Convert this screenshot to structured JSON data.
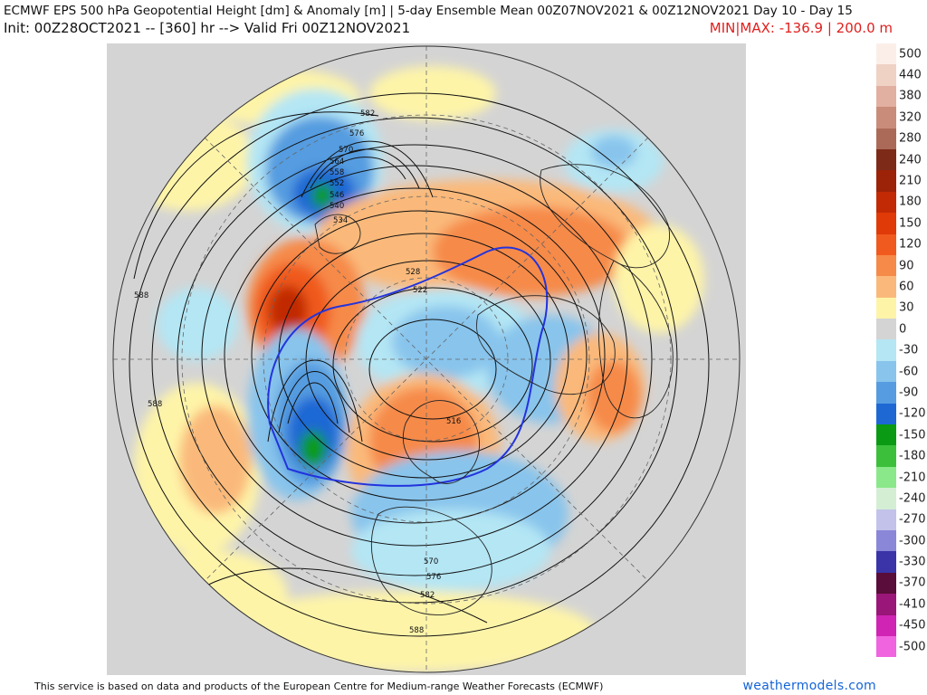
{
  "header": {
    "title": "ECMWF EPS 500 hPa Geopotential Height [dm] & Anomaly [m] | 5-day Ensemble Mean 00Z07NOV2021 & 00Z12NOV2021   Day 10 - Day 15",
    "init": "Init: 00Z28OCT2021 -- [360] hr --> Valid Fri 00Z12NOV2021",
    "minmax": "MIN|MAX: -136.9 | 200.0 m"
  },
  "map": {
    "contour_labels": [
      "582",
      "576",
      "570",
      "564",
      "558",
      "552",
      "546",
      "540",
      "534",
      "528",
      "522",
      "588",
      "588",
      "516",
      "570",
      "576",
      "582",
      "588"
    ]
  },
  "legend": {
    "entries": [
      {
        "label": "500",
        "color": "#fbeee8"
      },
      {
        "label": "440",
        "color": "#efd2c4"
      },
      {
        "label": "380",
        "color": "#e2b0a0"
      },
      {
        "label": "320",
        "color": "#c98c7a"
      },
      {
        "label": "280",
        "color": "#ab6a58"
      },
      {
        "label": "240",
        "color": "#7d2a18"
      },
      {
        "label": "210",
        "color": "#9c2208"
      },
      {
        "label": "180",
        "color": "#c12a04"
      },
      {
        "label": "150",
        "color": "#e03a08"
      },
      {
        "label": "120",
        "color": "#f05a1e"
      },
      {
        "label": "90",
        "color": "#f68a48"
      },
      {
        "label": "60",
        "color": "#fab97a"
      },
      {
        "label": "30",
        "color": "#fef4a8"
      },
      {
        "label": "0",
        "color": "#d4d4d4"
      },
      {
        "label": "-30",
        "color": "#b4e6f4"
      },
      {
        "label": "-60",
        "color": "#88c4ec"
      },
      {
        "label": "-90",
        "color": "#559ce0"
      },
      {
        "label": "-120",
        "color": "#1e68d4"
      },
      {
        "label": "-150",
        "color": "#0a9a14"
      },
      {
        "label": "-180",
        "color": "#3cc03c"
      },
      {
        "label": "-210",
        "color": "#8ae88a"
      },
      {
        "label": "-240",
        "color": "#d4eed4"
      },
      {
        "label": "-270",
        "color": "#c2c2ea"
      },
      {
        "label": "-300",
        "color": "#8a86d8"
      },
      {
        "label": "-330",
        "color": "#3a34a8"
      },
      {
        "label": "-370",
        "color": "#5a0c3a"
      },
      {
        "label": "-410",
        "color": "#9a1678"
      },
      {
        "label": "-450",
        "color": "#d024b4"
      },
      {
        "label": "-500",
        "color": "#f064e0"
      }
    ]
  },
  "footer": {
    "notice": "This service is based on data and products of the European Centre for Medium-range Weather Forecasts (ECMWF)",
    "brand": "weathermodels.com"
  }
}
